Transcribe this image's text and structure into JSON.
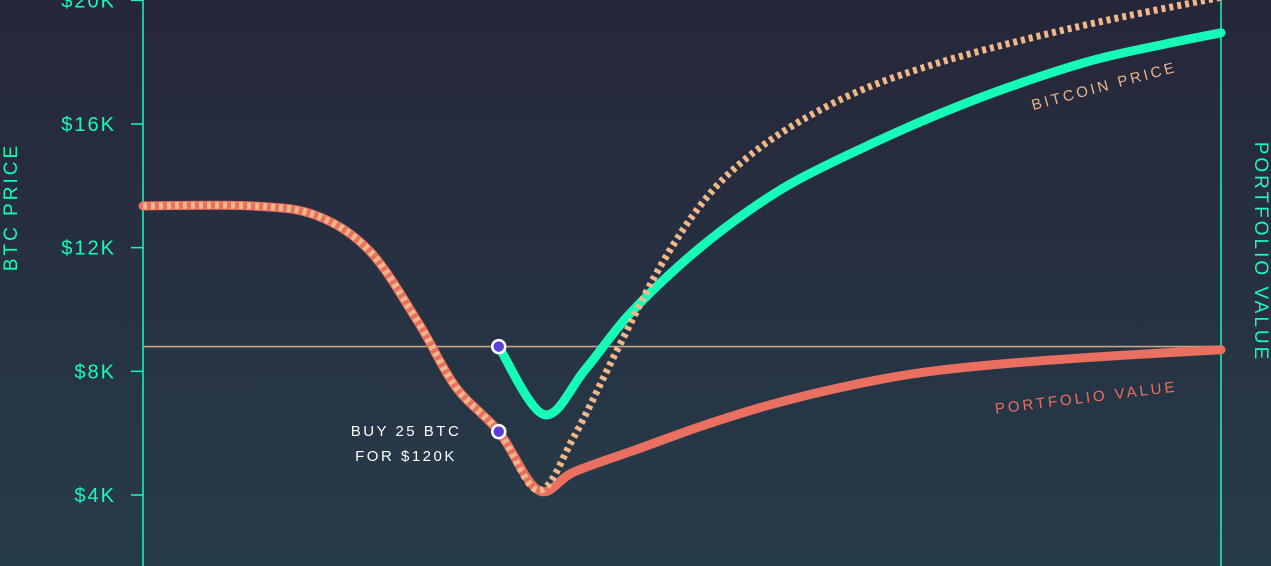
{
  "chart_data": {
    "type": "line",
    "title": "",
    "ylabel_left": "BTC PRICE",
    "ylabel_right": "PORTFOLIO VALUE",
    "y_ticks": [
      "$4K",
      "$8K",
      "$12K",
      "$16K",
      "$20K"
    ],
    "y_tick_values": [
      4000,
      8000,
      12000,
      16000,
      20000
    ],
    "ylim": [
      1800,
      20200
    ],
    "xlim": [
      0,
      100
    ],
    "grid": false,
    "reference_line": {
      "y": 8800
    },
    "annotation": {
      "line1": "BUY 25 BTC",
      "line2": "FOR $120K"
    },
    "buy_markers": [
      {
        "x": 33,
        "y": 8800
      },
      {
        "x": 33,
        "y": 6050
      }
    ],
    "series": [
      {
        "name": "BITCOIN PRICE",
        "style": "dotted",
        "color": "#f0b787",
        "points": [
          [
            0,
            13350
          ],
          [
            10,
            13350
          ],
          [
            16,
            13050
          ],
          [
            21,
            11900
          ],
          [
            25.5,
            9600
          ],
          [
            29,
            7500
          ],
          [
            33,
            6050
          ],
          [
            36.7,
            4150
          ],
          [
            40,
            5900
          ],
          [
            44,
            8700
          ],
          [
            48,
            11400
          ],
          [
            52,
            13500
          ],
          [
            56,
            14900
          ],
          [
            61,
            16100
          ],
          [
            67,
            17150
          ],
          [
            74,
            18000
          ],
          [
            82,
            18750
          ],
          [
            90,
            19400
          ],
          [
            100,
            20100
          ]
        ]
      },
      {
        "name": "",
        "style": "solid",
        "color": "#16fcb8",
        "points": [
          [
            33,
            8800
          ],
          [
            37.2,
            6600
          ],
          [
            41,
            8050
          ],
          [
            45,
            9800
          ],
          [
            50,
            11500
          ],
          [
            55,
            12900
          ],
          [
            60,
            14050
          ],
          [
            66,
            15100
          ],
          [
            73,
            16200
          ],
          [
            80,
            17150
          ],
          [
            88,
            18050
          ],
          [
            95,
            18600
          ],
          [
            100,
            18950
          ]
        ]
      },
      {
        "name": "PORTFOLIO VALUE",
        "style": "solid",
        "color": "#e97060",
        "points": [
          [
            0,
            13350
          ],
          [
            10,
            13350
          ],
          [
            16,
            13050
          ],
          [
            21,
            11900
          ],
          [
            25.5,
            9600
          ],
          [
            29,
            7500
          ],
          [
            33,
            6050
          ],
          [
            36.7,
            4150
          ],
          [
            40,
            4750
          ],
          [
            46,
            5500
          ],
          [
            52,
            6250
          ],
          [
            58,
            6900
          ],
          [
            65,
            7500
          ],
          [
            72,
            7950
          ],
          [
            80,
            8250
          ],
          [
            90,
            8500
          ],
          [
            100,
            8700
          ]
        ]
      }
    ],
    "series_labels": [
      {
        "text": "BITCOIN PRICE",
        "color": "#e9b48b",
        "at": [
          96,
          17700
        ]
      },
      {
        "text": "PORTFOLIO VALUE",
        "color": "#e97060",
        "at": [
          96,
          7350
        ]
      }
    ]
  }
}
